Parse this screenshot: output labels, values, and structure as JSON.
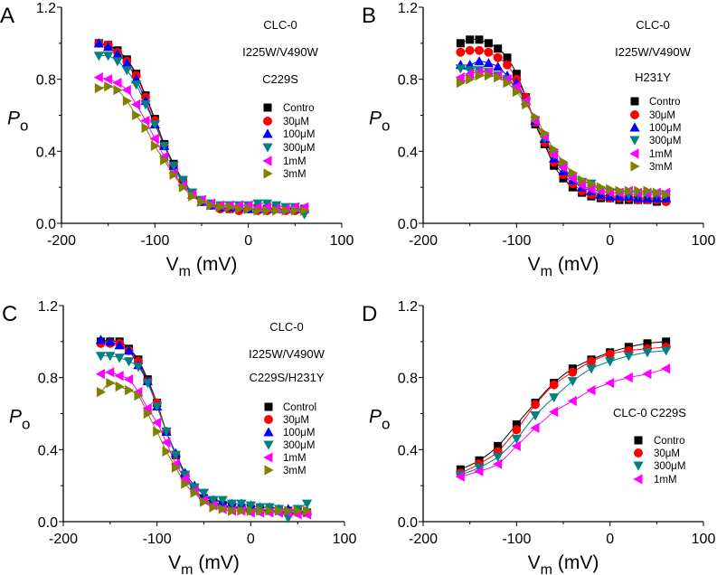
{
  "chart_data": [
    {
      "panel": "A",
      "type": "scatter",
      "xlabel": "V",
      "xlabel_sub": "m",
      "xlabel_unit": " (mV)",
      "ylabel": "P",
      "ylabel_sub": "o",
      "xlim": [
        -200,
        100
      ],
      "ylim": [
        0,
        1.2
      ],
      "xticks": [
        "-200",
        "-100",
        "0",
        "100"
      ],
      "yticks": [
        "0.0",
        "0.4",
        "0.8",
        "1.2"
      ],
      "annotations": [
        "CLC-0",
        "I225W/V490W",
        "C229S"
      ],
      "x": [
        -160,
        -150,
        -140,
        -130,
        -120,
        -110,
        -100,
        -90,
        -80,
        -70,
        -60,
        -50,
        -40,
        -30,
        -20,
        -10,
        0,
        10,
        20,
        30,
        40,
        50,
        60
      ],
      "series": [
        {
          "name": "Contro",
          "color": "#000000",
          "marker": "square",
          "values": [
            1.0,
            0.99,
            0.96,
            0.91,
            0.83,
            0.71,
            0.58,
            0.44,
            0.33,
            0.24,
            0.17,
            0.12,
            0.1,
            0.09,
            0.08,
            0.08,
            0.08,
            0.08,
            0.08,
            0.08,
            0.08,
            0.08,
            0.08
          ]
        },
        {
          "name": "30μM",
          "color": "#ff0000",
          "marker": "circle",
          "values": [
            1.0,
            0.99,
            0.95,
            0.9,
            0.82,
            0.7,
            0.57,
            0.43,
            0.32,
            0.23,
            0.16,
            0.12,
            0.1,
            0.08,
            0.08,
            0.07,
            0.08,
            0.07,
            0.07,
            0.08,
            0.07,
            0.07,
            0.07
          ]
        },
        {
          "name": "100μM",
          "color": "#0000ff",
          "marker": "triangle-up",
          "values": [
            1.0,
            0.98,
            0.94,
            0.89,
            0.8,
            0.68,
            0.55,
            0.43,
            0.32,
            0.23,
            0.16,
            0.12,
            0.1,
            0.09,
            0.09,
            0.09,
            0.08,
            0.08,
            0.08,
            0.08,
            0.08,
            0.08,
            0.08
          ]
        },
        {
          "name": "300μM",
          "color": "#008080",
          "marker": "triangle-down",
          "values": [
            0.93,
            0.93,
            0.9,
            0.85,
            0.77,
            0.66,
            0.55,
            0.43,
            0.32,
            0.24,
            0.17,
            0.13,
            0.11,
            0.1,
            0.1,
            0.1,
            0.1,
            0.11,
            0.11,
            0.1,
            0.09,
            0.09,
            0.05
          ]
        },
        {
          "name": "1mM",
          "color": "#ff00ff",
          "marker": "triangle-left",
          "values": [
            0.81,
            0.8,
            0.78,
            0.74,
            0.66,
            0.57,
            0.47,
            0.37,
            0.28,
            0.21,
            0.16,
            0.13,
            0.11,
            0.1,
            0.1,
            0.1,
            0.1,
            0.09,
            0.09,
            0.08,
            0.08,
            0.09,
            0.09
          ]
        },
        {
          "name": "3mM",
          "color": "#808000",
          "marker": "triangle-right",
          "values": [
            0.75,
            0.76,
            0.74,
            0.68,
            0.6,
            0.53,
            0.43,
            0.35,
            0.27,
            0.2,
            0.15,
            0.12,
            0.1,
            0.09,
            0.09,
            0.08,
            0.08,
            0.07,
            0.07,
            0.07,
            0.07,
            0.07,
            0.07
          ]
        }
      ]
    },
    {
      "panel": "B",
      "type": "scatter",
      "xlabel": "V",
      "xlabel_sub": "m",
      "xlabel_unit": " (mV)",
      "ylabel": "P",
      "ylabel_sub": "o",
      "xlim": [
        -200,
        100
      ],
      "ylim": [
        0,
        1.2
      ],
      "xticks": [
        "-200",
        "-100",
        "0",
        "100"
      ],
      "yticks": [
        "0.0",
        "0.4",
        "0.8",
        "1.2"
      ],
      "annotations": [
        "CLC-0",
        "I225W/V490W",
        "H231Y"
      ],
      "x": [
        -160,
        -150,
        -140,
        -130,
        -120,
        -110,
        -100,
        -90,
        -80,
        -70,
        -60,
        -50,
        -40,
        -30,
        -20,
        -10,
        0,
        10,
        20,
        30,
        40,
        50,
        60
      ],
      "series": [
        {
          "name": "Contro",
          "color": "#000000",
          "marker": "square",
          "values": [
            1.0,
            1.02,
            1.02,
            1.0,
            0.97,
            0.92,
            0.83,
            0.7,
            0.55,
            0.44,
            0.32,
            0.25,
            0.2,
            0.17,
            0.15,
            0.14,
            0.14,
            0.13,
            0.13,
            0.13,
            0.13,
            0.12,
            0.13
          ]
        },
        {
          "name": "30μM",
          "color": "#ff0000",
          "marker": "circle",
          "values": [
            0.95,
            0.96,
            0.96,
            0.95,
            0.92,
            0.88,
            0.8,
            0.7,
            0.56,
            0.45,
            0.34,
            0.27,
            0.22,
            0.18,
            0.16,
            0.15,
            0.14,
            0.14,
            0.14,
            0.13,
            0.13,
            0.13,
            0.12
          ]
        },
        {
          "name": "100μM",
          "color": "#0000ff",
          "marker": "triangle-up",
          "values": [
            0.88,
            0.88,
            0.9,
            0.89,
            0.87,
            0.82,
            0.78,
            0.68,
            0.57,
            0.47,
            0.36,
            0.29,
            0.24,
            0.2,
            0.18,
            0.16,
            0.15,
            0.15,
            0.15,
            0.14,
            0.14,
            0.14,
            0.14
          ]
        },
        {
          "name": "300μM",
          "color": "#008080",
          "marker": "triangle-down",
          "values": [
            0.86,
            0.85,
            0.85,
            0.84,
            0.82,
            0.8,
            0.75,
            0.67,
            0.57,
            0.47,
            0.38,
            0.31,
            0.26,
            0.23,
            0.22,
            0.18,
            0.17,
            0.17,
            0.16,
            0.16,
            0.16,
            0.16,
            0.16
          ]
        },
        {
          "name": "1mM",
          "color": "#ff00ff",
          "marker": "triangle-left",
          "values": [
            0.81,
            0.83,
            0.84,
            0.84,
            0.82,
            0.8,
            0.76,
            0.68,
            0.57,
            0.48,
            0.38,
            0.31,
            0.25,
            0.21,
            0.19,
            0.18,
            0.17,
            0.17,
            0.18,
            0.17,
            0.17,
            0.17,
            0.17
          ]
        },
        {
          "name": "3mM",
          "color": "#808000",
          "marker": "triangle-right",
          "values": [
            0.78,
            0.8,
            0.82,
            0.82,
            0.81,
            0.78,
            0.73,
            0.66,
            0.59,
            0.5,
            0.41,
            0.34,
            0.28,
            0.24,
            0.22,
            0.2,
            0.19,
            0.18,
            0.18,
            0.18,
            0.18,
            0.17,
            0.16
          ]
        }
      ]
    },
    {
      "panel": "C",
      "type": "scatter",
      "xlabel": "V",
      "xlabel_sub": "m",
      "xlabel_unit": " (mV)",
      "ylabel": "P",
      "ylabel_sub": "o",
      "xlim": [
        -200,
        100
      ],
      "ylim": [
        0,
        1.2
      ],
      "xticks": [
        "-200",
        "-100",
        "0",
        "100"
      ],
      "yticks": [
        "0.0",
        "0.4",
        "0.8",
        "1.2"
      ],
      "annotations": [
        "CLC-0",
        "I225W/V490W",
        "C229S/H231Y"
      ],
      "x": [
        -160,
        -150,
        -140,
        -130,
        -120,
        -110,
        -100,
        -90,
        -80,
        -70,
        -60,
        -50,
        -40,
        -30,
        -20,
        -10,
        0,
        10,
        20,
        30,
        40,
        50,
        60
      ],
      "series": [
        {
          "name": "Control",
          "color": "#000000",
          "marker": "square",
          "values": [
            1.0,
            1.0,
            1.0,
            0.96,
            0.9,
            0.79,
            0.66,
            0.5,
            0.37,
            0.26,
            0.18,
            0.13,
            0.11,
            0.09,
            0.08,
            0.07,
            0.07,
            0.07,
            0.06,
            0.06,
            0.06,
            0.06,
            0.05
          ]
        },
        {
          "name": "30μM",
          "color": "#ff0000",
          "marker": "circle",
          "values": [
            0.99,
            0.99,
            0.99,
            0.95,
            0.89,
            0.78,
            0.66,
            0.5,
            0.37,
            0.26,
            0.18,
            0.13,
            0.1,
            0.08,
            0.08,
            0.07,
            0.06,
            0.06,
            0.06,
            0.06,
            0.05,
            0.05,
            0.05
          ]
        },
        {
          "name": "100μM",
          "color": "#0000ff",
          "marker": "triangle-up",
          "values": [
            1.01,
            1.0,
            0.98,
            0.95,
            0.87,
            0.78,
            0.64,
            0.5,
            0.38,
            0.27,
            0.2,
            0.15,
            0.12,
            0.11,
            0.1,
            0.1,
            0.09,
            0.08,
            0.08,
            0.07,
            0.07,
            0.06,
            0.06
          ]
        },
        {
          "name": "300μM",
          "color": "#008080",
          "marker": "triangle-down",
          "values": [
            0.92,
            0.92,
            0.91,
            0.89,
            0.86,
            0.77,
            0.64,
            0.5,
            0.37,
            0.26,
            0.19,
            0.16,
            0.12,
            0.12,
            0.1,
            0.1,
            0.09,
            0.08,
            0.08,
            0.07,
            0.02,
            0.07,
            0.1
          ]
        },
        {
          "name": "1mM",
          "color": "#ff00ff",
          "marker": "triangle-left",
          "values": [
            0.82,
            0.83,
            0.81,
            0.79,
            0.72,
            0.63,
            0.55,
            0.44,
            0.32,
            0.24,
            0.17,
            0.12,
            0.09,
            0.07,
            0.06,
            0.06,
            0.05,
            0.05,
            0.05,
            0.05,
            0.05,
            0.04,
            0.04
          ]
        },
        {
          "name": "3mM",
          "color": "#808000",
          "marker": "triangle-right",
          "values": [
            0.72,
            0.77,
            0.75,
            0.73,
            0.7,
            0.6,
            0.5,
            0.39,
            0.3,
            0.21,
            0.16,
            0.11,
            0.08,
            0.07,
            0.06,
            0.06,
            0.06,
            0.06,
            0.06,
            0.06,
            0.06,
            0.06,
            0.06
          ]
        }
      ]
    },
    {
      "panel": "D",
      "type": "scatter",
      "xlabel": "V",
      "xlabel_sub": "m",
      "xlabel_unit": " (mV)",
      "ylabel": "P",
      "ylabel_sub": "o",
      "xlim": [
        -200,
        100
      ],
      "ylim": [
        0,
        1.2
      ],
      "xticks": [
        "-200",
        "-100",
        "0",
        "100"
      ],
      "yticks": [
        "0.0",
        "0.4",
        "0.8",
        "1.2"
      ],
      "annotations": [
        "CLC-0 C229S"
      ],
      "x": [
        -160,
        -140,
        -120,
        -100,
        -80,
        -60,
        -40,
        -20,
        0,
        20,
        40,
        60
      ],
      "series": [
        {
          "name": "Contro",
          "color": "#000000",
          "marker": "square",
          "values": [
            0.29,
            0.34,
            0.42,
            0.54,
            0.66,
            0.77,
            0.85,
            0.9,
            0.94,
            0.97,
            0.99,
            1.0
          ]
        },
        {
          "name": "30μM",
          "color": "#ff0000",
          "marker": "circle",
          "values": [
            0.27,
            0.32,
            0.39,
            0.51,
            0.65,
            0.76,
            0.83,
            0.89,
            0.93,
            0.95,
            0.96,
            0.97
          ]
        },
        {
          "name": "300μM",
          "color": "#008080",
          "marker": "triangle-down",
          "values": [
            0.26,
            0.3,
            0.36,
            0.46,
            0.59,
            0.69,
            0.78,
            0.85,
            0.89,
            0.92,
            0.94,
            0.95
          ]
        },
        {
          "name": "1mM",
          "color": "#ff00ff",
          "marker": "triangle-left",
          "values": [
            0.25,
            0.28,
            0.32,
            0.42,
            0.52,
            0.61,
            0.67,
            0.73,
            0.77,
            0.8,
            0.82,
            0.85
          ]
        }
      ]
    }
  ]
}
